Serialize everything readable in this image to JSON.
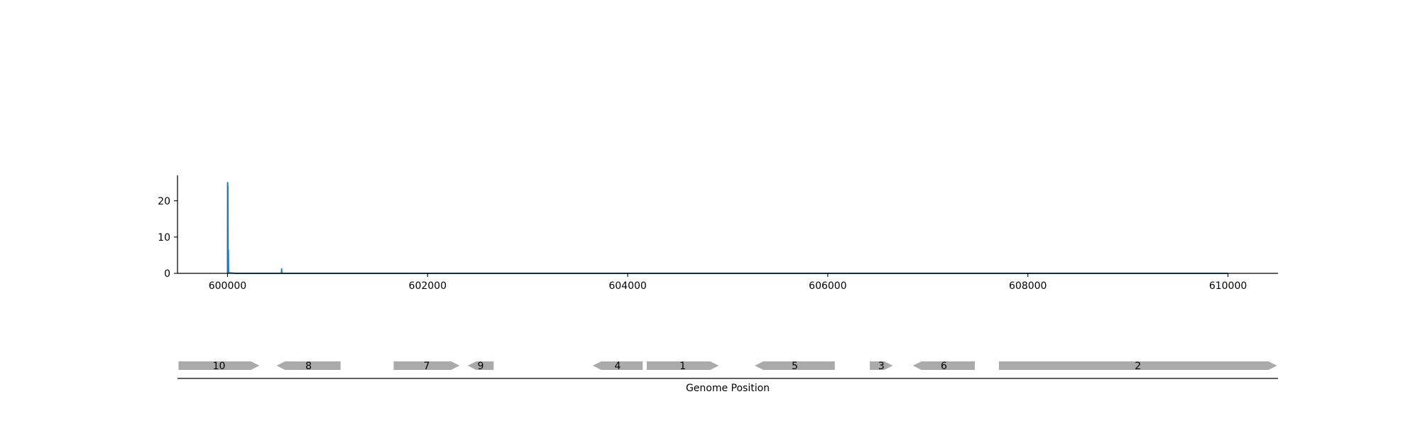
{
  "chart_data": [
    {
      "type": "line",
      "title": "",
      "xlabel": "",
      "ylabel": "",
      "xlim": [
        599500,
        610500
      ],
      "ylim": [
        0,
        27
      ],
      "x_ticks": [
        600000,
        602000,
        604000,
        606000,
        608000,
        610000
      ],
      "x_tick_labels": [
        "600000",
        "602000",
        "604000",
        "606000",
        "608000",
        "610000"
      ],
      "y_ticks": [
        0,
        10,
        20
      ],
      "y_tick_labels": [
        "0",
        "10",
        "20"
      ],
      "grid": false,
      "series": [
        {
          "color": "#1f77b4",
          "x": [
            600000,
            600001,
            600002,
            600003,
            600005,
            600008,
            600010,
            600015,
            600020,
            600040,
            600080,
            600200,
            600400,
            600540,
            600541,
            600542,
            600560,
            601000,
            602000,
            603000,
            604000,
            605000,
            606000,
            607000,
            608000,
            609000,
            610000
          ],
          "y": [
            0,
            25,
            3,
            24,
            6,
            6.5,
            0.5,
            0.2,
            0.1,
            0.1,
            0,
            0,
            0,
            0,
            1.2,
            0,
            0,
            0,
            0,
            0,
            0,
            0,
            0,
            0,
            0,
            0,
            0
          ]
        }
      ]
    },
    {
      "type": "gene-map",
      "xlabel": "Genome Position",
      "xlim": [
        599500,
        610500
      ],
      "feature_color": "#aaaaaa",
      "features": [
        {
          "label": "10",
          "start": 599510,
          "end": 600320,
          "strand": "+"
        },
        {
          "label": "8",
          "start": 600490,
          "end": 601130,
          "strand": "-"
        },
        {
          "label": "7",
          "start": 601660,
          "end": 602320,
          "strand": "+"
        },
        {
          "label": "9",
          "start": 602400,
          "end": 602660,
          "strand": "-"
        },
        {
          "label": "4",
          "start": 603650,
          "end": 604150,
          "strand": "-"
        },
        {
          "label": "1",
          "start": 604190,
          "end": 604910,
          "strand": "+"
        },
        {
          "label": "5",
          "start": 605270,
          "end": 606070,
          "strand": "-"
        },
        {
          "label": "3",
          "start": 606420,
          "end": 606650,
          "strand": "+"
        },
        {
          "label": "6",
          "start": 606850,
          "end": 607470,
          "strand": "-"
        },
        {
          "label": "2",
          "start": 607710,
          "end": 610490,
          "strand": "+"
        }
      ]
    }
  ]
}
